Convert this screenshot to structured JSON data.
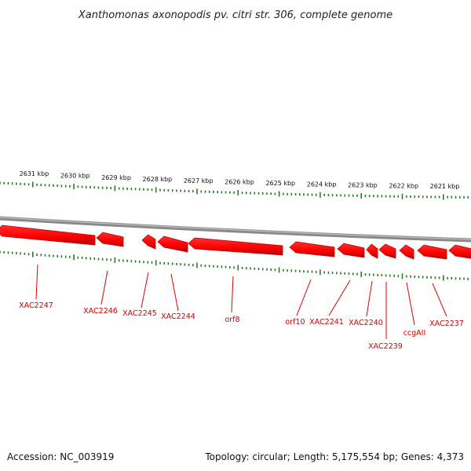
{
  "title": "Xanthomonas axonopodis pv. citri str. 306, complete genome",
  "footer": {
    "accession": "Accession: NC_003919",
    "summary": "Topology: circular; Length: 5,175,554 bp; Genes: 4,373"
  },
  "colors": {
    "gene_fill": "#ff0000",
    "gene_edge": "#c00000",
    "label": "#cc0000",
    "tick": "#2a7a2a",
    "backbone": "#777777"
  },
  "scale": {
    "labels": [
      "2631 kbp",
      "2630 kbp",
      "2629 kbp",
      "2628 kbp",
      "2627 kbp",
      "2626 kbp",
      "2625 kbp",
      "2624 kbp",
      "2623 kbp",
      "2622 kbp",
      "2621 kbp"
    ]
  },
  "genes": [
    {
      "label": "XAC2247"
    },
    {
      "label": "XAC2246"
    },
    {
      "label": "XAC2245"
    },
    {
      "label": "XAC2244"
    },
    {
      "label": "orf8"
    },
    {
      "label": "orf10"
    },
    {
      "label": "XAC2241"
    },
    {
      "label": "XAC2240"
    },
    {
      "label": "XAC2239"
    },
    {
      "label": "ccgAII"
    },
    {
      "label": "XAC2237"
    }
  ]
}
